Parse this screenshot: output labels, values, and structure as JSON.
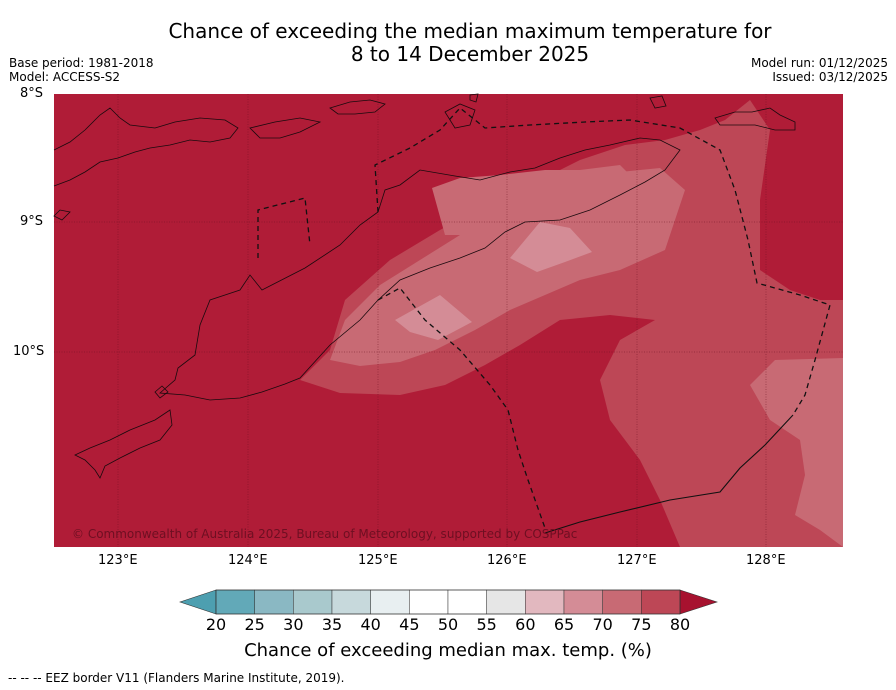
{
  "title": {
    "line1": "Chance of exceeding the median maximum temperature for",
    "line2": "8 to 14 December 2025"
  },
  "meta": {
    "base_period": "Base period: 1981-2018",
    "model": "Model: ACCESS-S2",
    "model_run": "Model run: 01/12/2025",
    "issued": "Issued: 03/12/2025"
  },
  "axes": {
    "lat_labels": [
      "8°S",
      "9°S",
      "10°S"
    ],
    "lon_labels": [
      "123°E",
      "124°E",
      "125°E",
      "126°E",
      "127°E",
      "128°E"
    ]
  },
  "copyright": "© Commonwealth of Australia 2025, Bureau of Meteorology, supported by COSPPac",
  "colorbar": {
    "ticks": [
      "20",
      "25",
      "30",
      "35",
      "40",
      "45",
      "50",
      "55",
      "60",
      "65",
      "70",
      "75",
      "80"
    ],
    "colors": [
      "#62a9b8",
      "#8ab8c3",
      "#a9c9cd",
      "#c7d9dc",
      "#e8eff1",
      "#ffffff",
      "#ffffff",
      "#e6e6e6",
      "#e2b8bf",
      "#d48c96",
      "#c86a74",
      "#bd4756",
      "#b01c37"
    ],
    "title": "Chance of exceeding median max. temp. (%)"
  },
  "legend": "--  --  -- EEZ border V11 (Flanders Marine Institute, 2019).",
  "fill_colors": {
    "base": "#b01c37",
    "band75": "#bd4756",
    "band70": "#c86a74",
    "band65": "#d48c96"
  }
}
